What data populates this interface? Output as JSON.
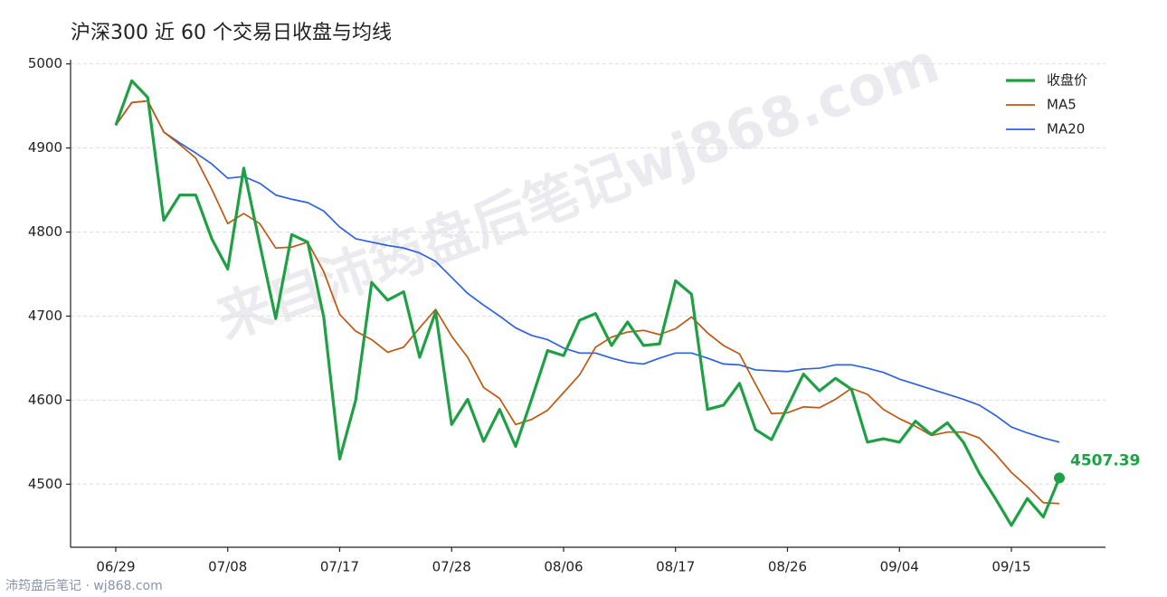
{
  "chart_data": {
    "type": "line",
    "title": "沪深300 近 60 个交易日收盘与均线",
    "watermark": "来自沛筠盘后笔记wj868.com",
    "footer": "沛筠盘后笔记 · wj868.com",
    "categories": [
      "06/29",
      null,
      null,
      null,
      null,
      null,
      null,
      "07/08",
      null,
      null,
      null,
      null,
      null,
      null,
      "07/17",
      null,
      null,
      null,
      null,
      null,
      null,
      "07/28",
      null,
      null,
      null,
      null,
      null,
      null,
      "08/06",
      null,
      null,
      null,
      null,
      null,
      null,
      "08/17",
      null,
      null,
      null,
      null,
      null,
      null,
      "08/26",
      null,
      null,
      null,
      null,
      null,
      null,
      "09/04",
      null,
      null,
      null,
      null,
      null,
      null,
      "09/15",
      null,
      null,
      null
    ],
    "series": [
      {
        "name": "收盘价",
        "color": "#1fa045",
        "values": [
          4927,
          4980,
          4960,
          4814,
          4844,
          4844,
          4792,
          4756,
          4876,
          4786,
          4697,
          4797,
          4788,
          4699,
          4530,
          4600,
          4740,
          4719,
          4729,
          4651,
          4705,
          4571,
          4601,
          4551,
          4589,
          4545,
          4601,
          4659,
          4653,
          4695,
          4703,
          4665,
          4693,
          4665,
          4667,
          4742,
          4726,
          4589,
          4594,
          4620,
          4565,
          4553,
          4592,
          4631,
          4611,
          4626,
          4613,
          4550,
          4554,
          4550,
          4575,
          4559,
          4573,
          4550,
          4513,
          4483,
          4451,
          4483,
          4461,
          4507.39
        ]
      },
      {
        "name": "MA5",
        "color": "#c0570f",
        "values": [
          4927,
          4954,
          4956,
          4919,
          4904,
          4888,
          4851,
          4810,
          4822,
          4810,
          4781,
          4782,
          4788,
          4753,
          4702,
          4682,
          4672,
          4657,
          4663,
          4686,
          4708,
          4676,
          4651,
          4615,
          4602,
          4571,
          4577,
          4588,
          4609,
          4630,
          4663,
          4675,
          4681,
          4683,
          4678,
          4685,
          4699,
          4680,
          4665,
          4655,
          4619,
          4584,
          4585,
          4592,
          4591,
          4601,
          4614,
          4607,
          4589,
          4578,
          4569,
          4558,
          4562,
          4562,
          4555,
          4536,
          4514,
          4497,
          4478,
          4477
        ]
      },
      {
        "name": "MA20",
        "color": "#2d62e0",
        "values": [
          4927,
          4954,
          4956,
          4919,
          4906,
          4894,
          4881,
          4864,
          4866,
          4858,
          4844,
          4839,
          4835,
          4825,
          4806,
          4792,
          4788,
          4784,
          4781,
          4775,
          4765,
          4746,
          4727,
          4713,
          4700,
          4686,
          4677,
          4672,
          4662,
          4656,
          4656,
          4650,
          4645,
          4643,
          4650,
          4656,
          4656,
          4650,
          4643,
          4642,
          4636,
          4635,
          4634,
          4637,
          4638,
          4642,
          4642,
          4638,
          4633,
          4625,
          4619,
          4613,
          4607,
          4601,
          4594,
          4582,
          4568,
          4561,
          4555,
          4550
        ]
      }
    ],
    "ylim": [
      4425,
      5005
    ],
    "yticks": [
      4500,
      4600,
      4700,
      4800,
      4900,
      5000
    ],
    "grid": true,
    "legend": "upper right"
  }
}
